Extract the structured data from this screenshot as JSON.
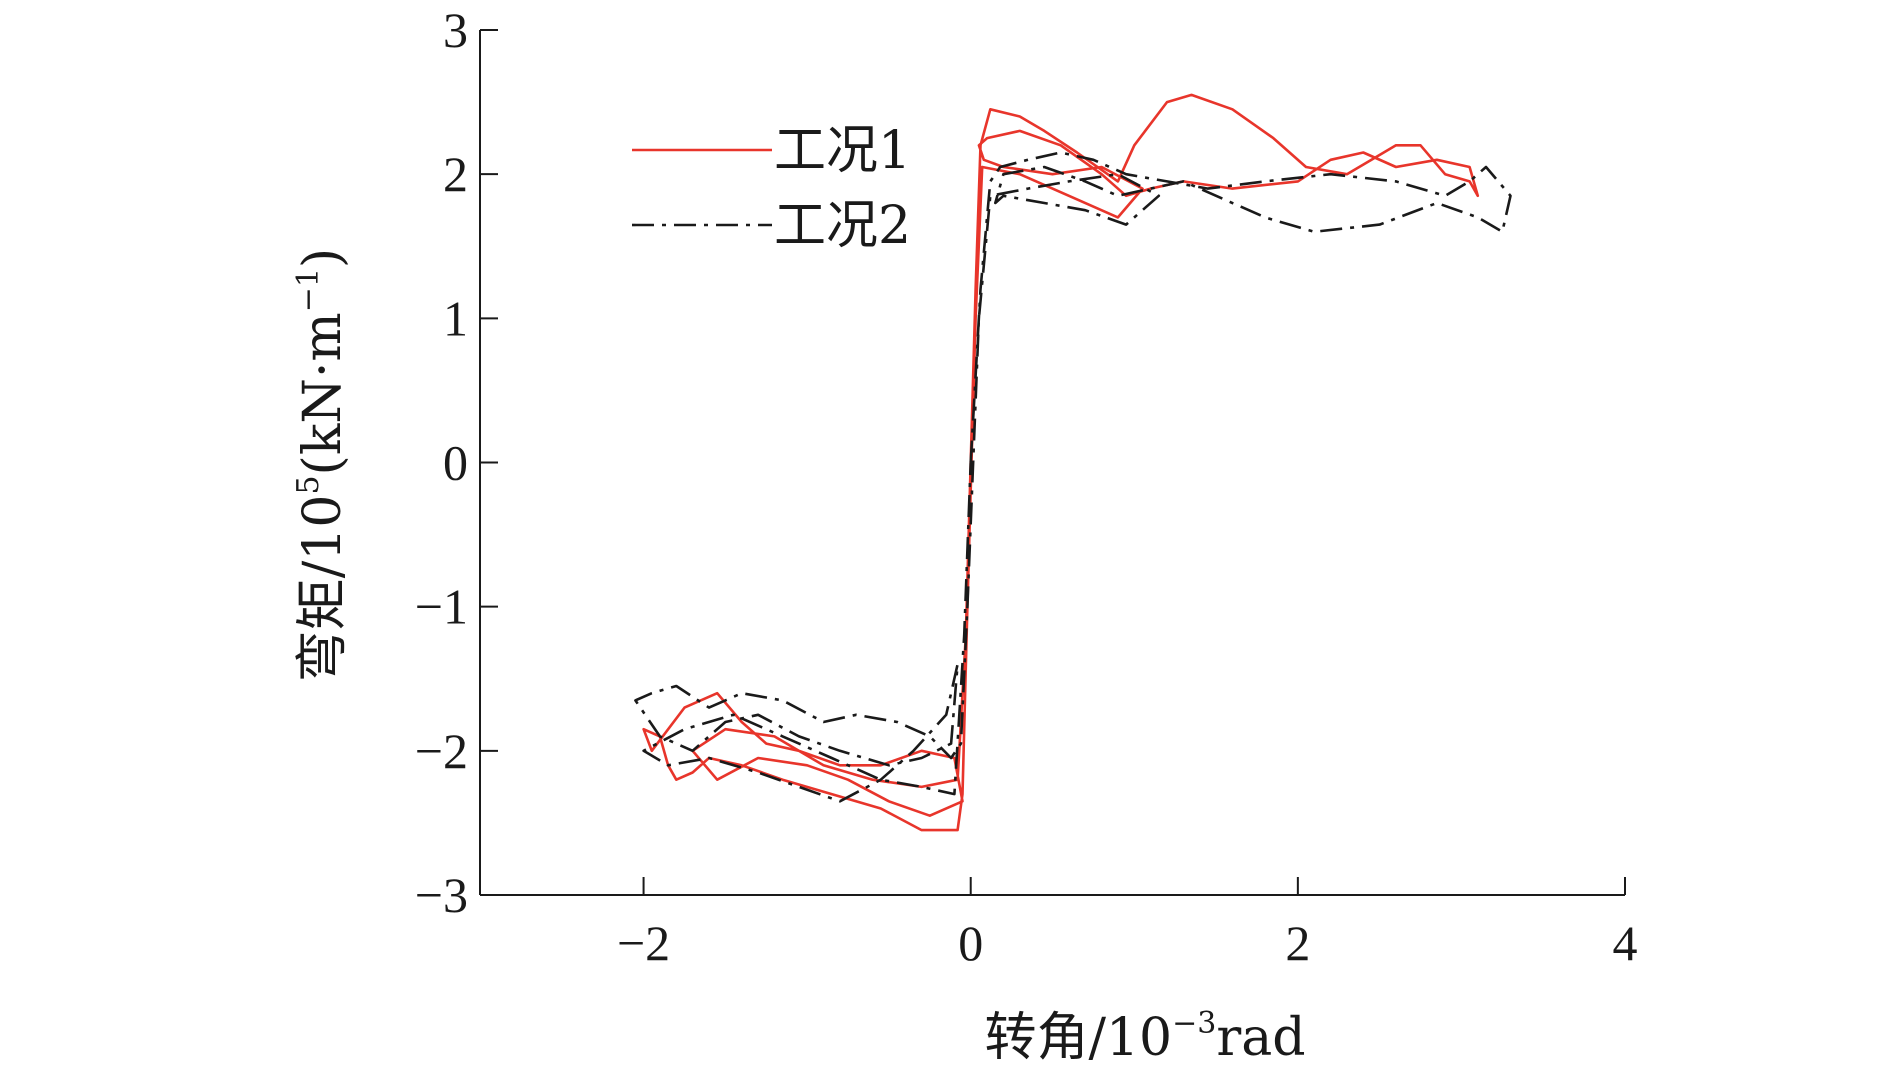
{
  "chart_data": {
    "type": "line",
    "xlabel_main": "转角/10",
    "xlabel_sup": "−3",
    "xlabel_unit": "rad",
    "ylabel_main": "弯矩/10",
    "ylabel_sup": "5",
    "ylabel_unit_open": "(kN·m",
    "ylabel_unit_sup": "−1",
    "ylabel_unit_close": ")",
    "xlim": [
      -3,
      4
    ],
    "ylim": [
      -3,
      3
    ],
    "xticks": [
      -2,
      0,
      2,
      4
    ],
    "xtick_labels": [
      "−2",
      "0",
      "2",
      "4"
    ],
    "yticks": [
      -3,
      -2,
      -1,
      0,
      1,
      2,
      3
    ],
    "ytick_labels": [
      "−3",
      "−2",
      "−1",
      "0",
      "1",
      "2",
      "3"
    ],
    "grid": false,
    "legend_position": "top-left",
    "series": [
      {
        "name": "工况1",
        "color": "#e8352b",
        "dash": "solid",
        "x": [
          0.0,
          0.03,
          0.06,
          0.12,
          0.3,
          0.45,
          0.65,
          0.9,
          1.0,
          1.2,
          1.35,
          1.6,
          1.85,
          2.05,
          2.3,
          2.45,
          2.6,
          2.75,
          2.9,
          3.05,
          3.1,
          3.05,
          2.85,
          2.6,
          2.4,
          2.2,
          2.0,
          1.6,
          1.3,
          1.1,
          0.95,
          0.8,
          0.55,
          0.3,
          0.1,
          0.05,
          0.08,
          0.2,
          0.5,
          0.8,
          1.05,
          0.9,
          0.6,
          0.3,
          0.07,
          0.03,
          -0.02,
          -0.05,
          -0.08,
          -0.3,
          -0.55,
          -0.85,
          -1.15,
          -1.4,
          -1.6,
          -1.7,
          -1.8,
          -1.85,
          -1.9,
          -2.0,
          -1.95,
          -1.75,
          -1.55,
          -1.4,
          -1.25,
          -1.05,
          -0.8,
          -0.55,
          -0.3,
          -0.1,
          -0.05,
          -0.25,
          -0.5,
          -0.75,
          -1.0,
          -1.3,
          -1.55,
          -1.7,
          -1.5,
          -1.2,
          -0.9,
          -0.6,
          -0.3,
          -0.08,
          -0.03,
          0.0
        ],
        "y": [
          0.0,
          1.2,
          2.2,
          2.45,
          2.4,
          2.3,
          2.15,
          1.95,
          2.2,
          2.5,
          2.55,
          2.45,
          2.25,
          2.05,
          2.0,
          2.1,
          2.2,
          2.2,
          2.0,
          1.95,
          1.85,
          2.05,
          2.1,
          2.05,
          2.15,
          2.1,
          1.95,
          1.9,
          1.95,
          1.9,
          1.85,
          2.0,
          2.2,
          2.3,
          2.25,
          2.2,
          2.1,
          2.05,
          2.0,
          2.05,
          1.9,
          1.7,
          1.85,
          2.0,
          2.05,
          1.0,
          -1.0,
          -2.3,
          -2.55,
          -2.55,
          -2.4,
          -2.3,
          -2.2,
          -2.1,
          -2.05,
          -2.15,
          -2.2,
          -2.1,
          -1.9,
          -1.85,
          -2.0,
          -1.7,
          -1.6,
          -1.8,
          -1.95,
          -2.0,
          -2.1,
          -2.1,
          -2.0,
          -2.05,
          -2.35,
          -2.45,
          -2.35,
          -2.2,
          -2.1,
          -2.05,
          -2.2,
          -2.0,
          -1.85,
          -1.9,
          -2.1,
          -2.2,
          -2.25,
          -2.2,
          -1.2,
          0.0
        ]
      },
      {
        "name": "工况2",
        "color": "#1a1a1a",
        "dash": "dashdot",
        "x": [
          0.0,
          0.06,
          0.12,
          0.18,
          0.35,
          0.55,
          0.75,
          0.95,
          1.2,
          1.45,
          1.8,
          2.2,
          2.6,
          2.9,
          3.05,
          3.15,
          3.3,
          3.25,
          3.1,
          2.85,
          2.5,
          2.1,
          1.8,
          1.5,
          1.3,
          1.1,
          0.9,
          0.7,
          0.45,
          0.2,
          0.15,
          0.2,
          0.45,
          0.7,
          0.95,
          1.15,
          0.9,
          0.6,
          0.35,
          0.12,
          0.05,
          -0.02,
          -0.06,
          -0.12,
          -0.25,
          -0.45,
          -0.7,
          -0.9,
          -1.15,
          -1.4,
          -1.6,
          -1.8,
          -1.95,
          -2.05,
          -1.9,
          -1.7,
          -1.5,
          -1.3,
          -1.05,
          -0.8,
          -0.5,
          -0.3,
          -0.12,
          -0.08,
          -0.15,
          -0.35,
          -0.55,
          -0.8,
          -1.05,
          -1.3,
          -1.6,
          -1.85,
          -2.0,
          -1.75,
          -1.45,
          -1.15,
          -0.85,
          -0.55,
          -0.3,
          -0.1,
          -0.04,
          0.0
        ],
        "y": [
          0.0,
          1.2,
          1.95,
          2.05,
          2.1,
          2.15,
          2.1,
          2.0,
          1.95,
          1.9,
          1.95,
          2.0,
          1.95,
          1.85,
          1.95,
          2.05,
          1.85,
          1.6,
          1.7,
          1.8,
          1.65,
          1.6,
          1.7,
          1.85,
          1.95,
          1.9,
          1.85,
          1.95,
          2.05,
          2.0,
          1.8,
          1.85,
          1.8,
          1.75,
          1.65,
          1.85,
          2.0,
          1.95,
          1.9,
          1.85,
          1.0,
          -1.0,
          -1.95,
          -2.05,
          -1.9,
          -1.8,
          -1.75,
          -1.8,
          -1.65,
          -1.6,
          -1.7,
          -1.55,
          -1.6,
          -1.65,
          -1.9,
          -2.0,
          -1.8,
          -1.75,
          -1.9,
          -2.0,
          -2.1,
          -2.05,
          -1.95,
          -1.4,
          -1.75,
          -2.0,
          -2.2,
          -2.35,
          -2.25,
          -2.15,
          -2.05,
          -2.1,
          -2.0,
          -1.85,
          -1.75,
          -1.9,
          -2.05,
          -2.2,
          -2.25,
          -2.3,
          -1.2,
          0.0
        ]
      }
    ]
  }
}
